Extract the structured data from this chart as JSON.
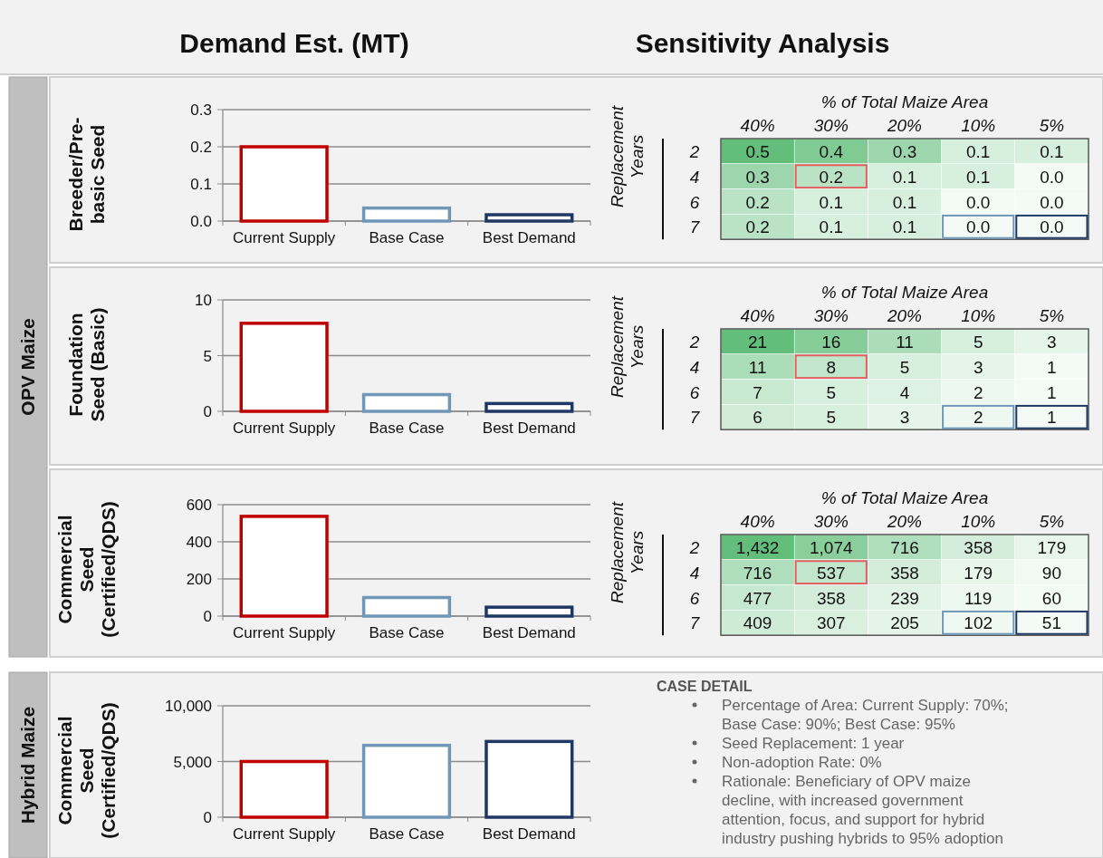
{
  "chart_data": [
    {
      "type": "other",
      "title": "OPV Maize"
    },
    {
      "type": "bar",
      "title": "Demand Est. (MT)",
      "ylabel": "Breeder/Pre-basic Seed",
      "categories": [
        "Current Supply",
        "Base Case",
        "Best Demand"
      ],
      "values": [
        0.2,
        0.035,
        0.017
      ],
      "colors": [
        "#c00000",
        "#7096b8",
        "#1f3864"
      ],
      "ylim": [
        0,
        0.3
      ],
      "yticks": [
        {
          "value": 0,
          "label": "0.0"
        },
        {
          "value": 0.1,
          "label": "0.1"
        },
        {
          "value": 0.2,
          "label": "0.2"
        },
        {
          "value": 0.3,
          "label": "0.3"
        }
      ],
      "grid": "y"
    },
    {
      "type": "heatmap",
      "title": "Sensitivity Analysis",
      "xlabel": "% of Total Maize Area",
      "ylabel": "Replacement Years",
      "categories": [
        "40%",
        "30%",
        "20%",
        "10%",
        "5%"
      ],
      "y_categories": [
        "2",
        "4",
        "6",
        "7"
      ],
      "cells": [
        [
          0.5,
          0.4,
          0.3,
          0.1,
          0.1
        ],
        [
          0.3,
          0.2,
          0.1,
          0.1,
          0.0
        ],
        [
          0.2,
          0.1,
          0.1,
          0.0,
          0.0
        ],
        [
          0.2,
          0.1,
          0.1,
          0.0,
          0.0
        ]
      ],
      "cell_labels": [
        [
          "0.5",
          "0.4",
          "0.3",
          "0.1",
          "0.1"
        ],
        [
          "0.3",
          "0.2",
          "0.1",
          "0.1",
          "0.0"
        ],
        [
          "0.2",
          "0.1",
          "0.1",
          "0.0",
          "0.0"
        ],
        [
          "0.2",
          "0.1",
          "0.1",
          "0.0",
          "0.0"
        ]
      ]
    },
    {
      "type": "bar",
      "ylabel": "Foundation Seed (Basic)",
      "categories": [
        "Current Supply",
        "Base Case",
        "Best Demand"
      ],
      "values": [
        7.9,
        1.5,
        0.7
      ],
      "colors": [
        "#c00000",
        "#7096b8",
        "#1f3864"
      ],
      "ylim": [
        0,
        10
      ],
      "yticks": [
        0,
        5,
        10
      ],
      "grid": "y"
    },
    {
      "type": "heatmap",
      "xlabel": "% of Total Maize Area",
      "ylabel": "Replacement Years",
      "categories": [
        "40%",
        "30%",
        "20%",
        "10%",
        "5%"
      ],
      "y_categories": [
        "2",
        "4",
        "6",
        "7"
      ],
      "cells": [
        [
          21,
          16,
          11,
          5,
          3
        ],
        [
          11,
          8,
          5,
          3,
          1
        ],
        [
          7,
          5,
          4,
          2,
          1
        ],
        [
          6,
          5,
          3,
          2,
          1
        ]
      ],
      "cell_labels": [
        [
          "21",
          "16",
          "11",
          "5",
          "3"
        ],
        [
          "11",
          "8",
          "5",
          "3",
          "1"
        ],
        [
          "7",
          "5",
          "4",
          "2",
          "1"
        ],
        [
          "6",
          "5",
          "3",
          "2",
          "1"
        ]
      ]
    },
    {
      "type": "bar",
      "ylabel": "Commercial Seed (Certified/QDS)",
      "categories": [
        "Current Supply",
        "Base Case",
        "Best Demand"
      ],
      "values": [
        537,
        100,
        48
      ],
      "colors": [
        "#c00000",
        "#7096b8",
        "#1f3864"
      ],
      "ylim": [
        0,
        600
      ],
      "yticks": [
        0,
        200,
        400,
        600
      ],
      "grid": "y"
    },
    {
      "type": "heatmap",
      "xlabel": "% of Total Maize Area",
      "ylabel": "Replacement Years",
      "categories": [
        "40%",
        "30%",
        "20%",
        "10%",
        "5%"
      ],
      "y_categories": [
        "2",
        "4",
        "6",
        "7"
      ],
      "cells": [
        [
          1432,
          1074,
          716,
          358,
          179
        ],
        [
          716,
          537,
          358,
          179,
          90
        ],
        [
          477,
          358,
          239,
          119,
          60
        ],
        [
          409,
          307,
          205,
          102,
          51
        ]
      ],
      "cell_labels": [
        [
          "1,432",
          "1,074",
          "716",
          "358",
          "179"
        ],
        [
          "716",
          "537",
          "358",
          "179",
          "90"
        ],
        [
          "477",
          "358",
          "239",
          "119",
          "60"
        ],
        [
          "409",
          "307",
          "205",
          "102",
          "51"
        ]
      ]
    },
    {
      "type": "other",
      "title": "Hybrid Maize"
    },
    {
      "type": "bar",
      "ylabel": "Commercial Seed (Certified/QDS)",
      "categories": [
        "Current Supply",
        "Base Case",
        "Best Demand"
      ],
      "values": [
        5000,
        6450,
        6800
      ],
      "colors": [
        "#c00000",
        "#7096b8",
        "#1f3864"
      ],
      "ylim": [
        0,
        10000
      ],
      "yticks": [
        0,
        {
          "value": 5000,
          "label": "5,000"
        },
        {
          "value": 10000,
          "label": "10,000"
        }
      ],
      "grid": "y"
    },
    {
      "type": "other",
      "title": "CASE DETAIL",
      "annotations": [
        "Percentage of Area: Current Supply: 70%; Base Case: 90%; Best Case: 95%",
        "Seed Replacement: 1 year",
        "Non-adoption Rate: 0%",
        "Rationale: Beneficiary of OPV maize decline, with increased government attention, focus, and support for hybrid industry pushing hybrids to 95% adoption"
      ]
    }
  ]
}
